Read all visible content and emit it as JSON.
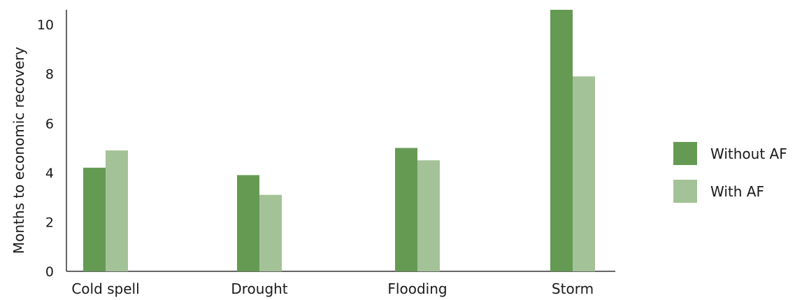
{
  "chart_data": {
    "type": "bar",
    "categories": [
      "Cold spell",
      "Drought",
      "Flooding",
      "Storm"
    ],
    "series": [
      {
        "name": "Without AF",
        "color": "#659a53",
        "values": [
          4.2,
          3.9,
          5.0,
          10.6
        ]
      },
      {
        "name": "With AF",
        "color": "#a4c297",
        "values": [
          4.9,
          3.1,
          4.5,
          7.9
        ]
      }
    ],
    "ylabel": "Months to economic recovery",
    "xlabel": "",
    "ylim": [
      0,
      10.6
    ],
    "yticks": [
      0,
      2,
      4,
      6,
      8,
      10
    ],
    "grid": false,
    "legend_position": "right"
  }
}
